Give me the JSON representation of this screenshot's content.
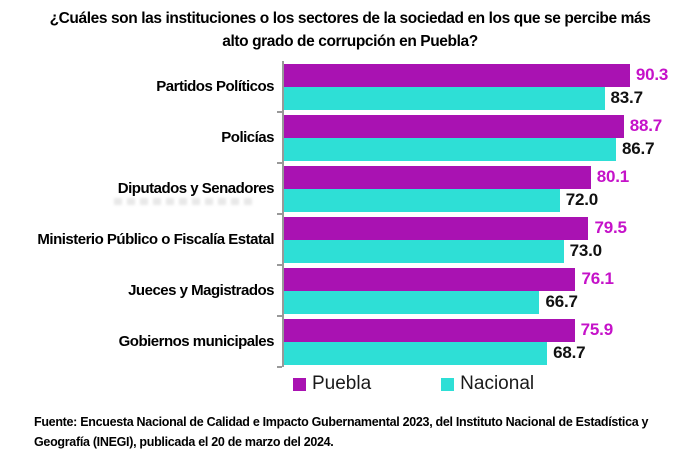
{
  "title": {
    "lines": [
      "¿Cuáles son las instituciones o los sectores de la sociedad en los que se percibe más",
      "alto grado de corrupción en Puebla?"
    ]
  },
  "chart_data": {
    "type": "bar",
    "orientation": "horizontal",
    "title": "¿Cuáles son las instituciones o los sectores de la sociedad en los que se percibe más alto grado de corrupción en Puebla?",
    "categories": [
      "Partidos Políticos",
      "Policías",
      "Diputados y Senadores",
      "Ministerio Público o Fiscalía Estatal",
      "Jueces y Magistrados",
      "Gobiernos municipales"
    ],
    "series": [
      {
        "name": "Puebla",
        "color": "#A912B2",
        "label_color": "#C512C9",
        "values": [
          90.3,
          88.7,
          80.1,
          79.5,
          76.1,
          75.9
        ]
      },
      {
        "name": "Nacional",
        "color": "#2EDFD6",
        "label_color": "#111111",
        "values": [
          83.7,
          86.7,
          72.0,
          73.0,
          66.7,
          68.7
        ]
      }
    ],
    "xlim": [
      0,
      94
    ],
    "value_labels": true,
    "grid": false,
    "legend_position": "bottom",
    "axis_color": "#999999"
  },
  "legend": {
    "items": [
      {
        "label": "Puebla",
        "color": "#A912B2"
      },
      {
        "label": "Nacional",
        "color": "#2EDFD6"
      }
    ]
  },
  "source": {
    "lines": [
      "Fuente: Encuesta Nacional de Calidad e Impacto Gubernamental 2023, del Instituto Nacional de Estadística y",
      "Geografía (INEGI), publicada el 20 de marzo del 2024."
    ]
  }
}
